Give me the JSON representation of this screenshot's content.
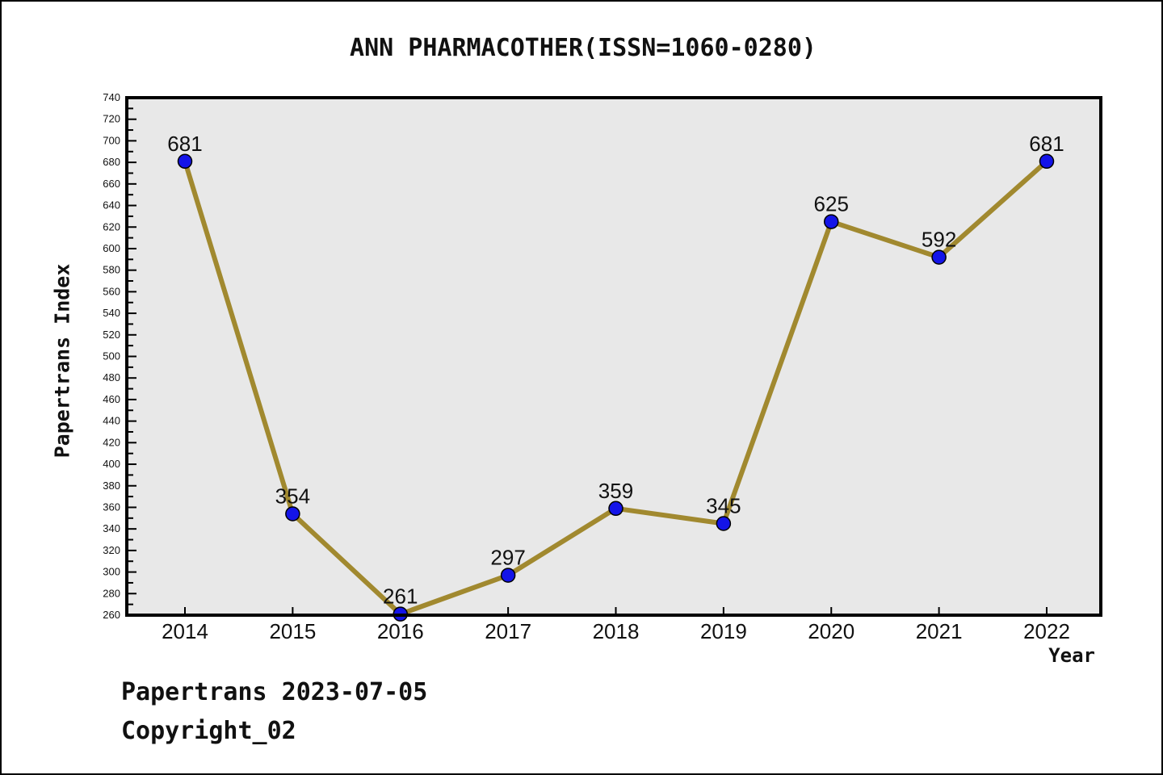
{
  "title": "ANN PHARMACOTHER(ISSN=1060-0280)",
  "footer": {
    "line1": "Papertrans 2023-07-05",
    "line2": "Copyright_02"
  },
  "chart_data": {
    "type": "line",
    "x": [
      2014,
      2015,
      2016,
      2017,
      2018,
      2019,
      2020,
      2021,
      2022
    ],
    "values": [
      681,
      354,
      261,
      297,
      359,
      345,
      625,
      592,
      681
    ],
    "point_labels": [
      "681",
      "354",
      "261",
      "297",
      "359",
      "345",
      "625",
      "592",
      "681"
    ],
    "title": "ANN PHARMACOTHER(ISSN=1060-0280)",
    "xlabel": "Year",
    "ylabel": "Papertrans Index",
    "ylim": [
      260,
      740
    ],
    "y_major_step": 20,
    "y_minor_step": 10,
    "grid": false,
    "legend": "none",
    "colors": {
      "line": "#a1892f",
      "marker_fill": "#1414e8",
      "marker_edge": "#000000",
      "plot_bg": "#e8e8e8",
      "spine": "#000000",
      "text": "#111111"
    }
  }
}
